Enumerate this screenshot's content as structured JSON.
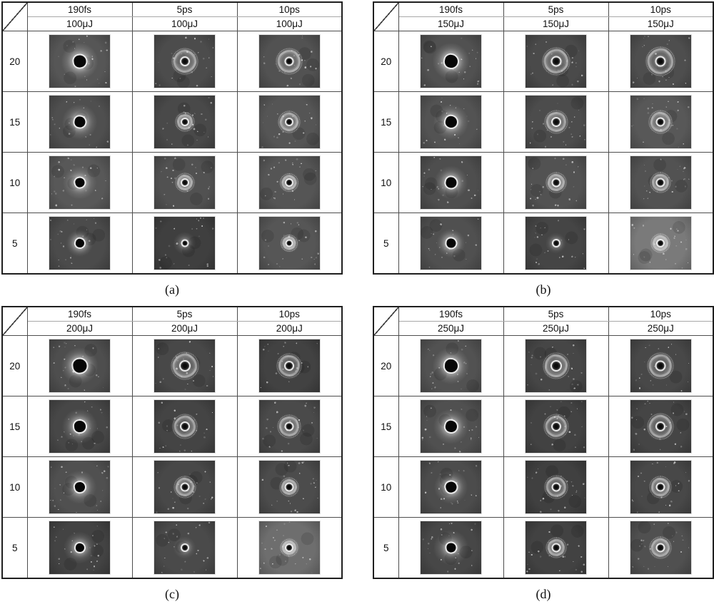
{
  "figure": {
    "panels": [
      {
        "caption": "(a)",
        "energy": "100μJ",
        "durations": [
          "190fs",
          "5ps",
          "10ps"
        ],
        "row_labels": [
          "20",
          "15",
          "10",
          "5"
        ],
        "cells": [
          [
            {
              "hole": 17,
              "ring": 0,
              "halo": 0.42,
              "halo_r": 46,
              "bg": "#565656"
            },
            {
              "hole": 10,
              "ring": 26,
              "halo": 0.18,
              "halo_r": 32,
              "bg": "#4c4c4c"
            },
            {
              "hole": 9,
              "ring": 26,
              "halo": 0.15,
              "halo_r": 30,
              "bg": "#525252"
            }
          ],
          [
            {
              "hole": 15,
              "ring": 0,
              "halo": 0.36,
              "halo_r": 44,
              "bg": "#4f4f4f"
            },
            {
              "hole": 8,
              "ring": 16,
              "halo": 0.15,
              "halo_r": 26,
              "bg": "#494949"
            },
            {
              "hole": 8,
              "ring": 20,
              "halo": 0.15,
              "halo_r": 26,
              "bg": "#555555"
            }
          ],
          [
            {
              "hole": 13,
              "ring": 0,
              "halo": 0.33,
              "halo_r": 42,
              "bg": "#585858"
            },
            {
              "hole": 8,
              "ring": 16,
              "halo": 0.15,
              "halo_r": 24,
              "bg": "#515151"
            },
            {
              "hole": 8,
              "ring": 15,
              "halo": 0.14,
              "halo_r": 22,
              "bg": "#555555"
            }
          ],
          [
            {
              "hole": 12,
              "ring": 0,
              "halo": 0.28,
              "halo_r": 34,
              "bg": "#4b4b4b"
            },
            {
              "hole": 7,
              "ring": 0,
              "halo": 0.24,
              "halo_r": 28,
              "bg": "#3f3f3f"
            },
            {
              "hole": 7,
              "ring": 13,
              "halo": 0.22,
              "halo_r": 24,
              "bg": "#565656"
            }
          ]
        ]
      },
      {
        "caption": "(b)",
        "energy": "150μJ",
        "durations": [
          "190fs",
          "5ps",
          "10ps"
        ],
        "row_labels": [
          "20",
          "15",
          "10",
          "5"
        ],
        "cells": [
          [
            {
              "hole": 18,
              "ring": 0,
              "halo": 0.42,
              "halo_r": 46,
              "bg": "#515151"
            },
            {
              "hole": 11,
              "ring": 28,
              "halo": 0.18,
              "halo_r": 32,
              "bg": "#4a4a4a"
            },
            {
              "hole": 11,
              "ring": 30,
              "halo": 0.16,
              "halo_r": 32,
              "bg": "#4e4e4e"
            }
          ],
          [
            {
              "hole": 16,
              "ring": 0,
              "halo": 0.38,
              "halo_r": 44,
              "bg": "#535353"
            },
            {
              "hole": 10,
              "ring": 22,
              "halo": 0.16,
              "halo_r": 28,
              "bg": "#4c4c4c"
            },
            {
              "hole": 9,
              "ring": 22,
              "halo": 0.15,
              "halo_r": 28,
              "bg": "#585858"
            }
          ],
          [
            {
              "hole": 15,
              "ring": 0,
              "halo": 0.34,
              "halo_r": 42,
              "bg": "#4e4e4e"
            },
            {
              "hole": 9,
              "ring": 18,
              "halo": 0.15,
              "halo_r": 26,
              "bg": "#525252"
            },
            {
              "hole": 9,
              "ring": 18,
              "halo": 0.14,
              "halo_r": 24,
              "bg": "#525252"
            }
          ],
          [
            {
              "hole": 13,
              "ring": 0,
              "halo": 0.3,
              "halo_r": 36,
              "bg": "#505050"
            },
            {
              "hole": 8,
              "ring": 0,
              "halo": 0.2,
              "halo_r": 26,
              "bg": "#454545"
            },
            {
              "hole": 8,
              "ring": 16,
              "halo": 0.24,
              "halo_r": 26,
              "bg": "#7a7a7a"
            }
          ]
        ]
      },
      {
        "caption": "(c)",
        "energy": "200μJ",
        "durations": [
          "190fs",
          "5ps",
          "10ps"
        ],
        "row_labels": [
          "20",
          "15",
          "10",
          "5"
        ],
        "cells": [
          [
            {
              "hole": 19,
              "ring": 0,
              "halo": 0.4,
              "halo_r": 46,
              "bg": "#4e4e4e"
            },
            {
              "hole": 12,
              "ring": 28,
              "halo": 0.18,
              "halo_r": 32,
              "bg": "#484848"
            },
            {
              "hole": 10,
              "ring": 24,
              "halo": 0.16,
              "halo_r": 28,
              "bg": "#424242"
            }
          ],
          [
            {
              "hole": 16,
              "ring": 0,
              "halo": 0.36,
              "halo_r": 44,
              "bg": "#474747"
            },
            {
              "hole": 10,
              "ring": 24,
              "halo": 0.16,
              "halo_r": 30,
              "bg": "#444444"
            },
            {
              "hole": 9,
              "ring": 22,
              "halo": 0.15,
              "halo_r": 28,
              "bg": "#4a4a4a"
            }
          ],
          [
            {
              "hole": 14,
              "ring": 0,
              "halo": 0.34,
              "halo_r": 42,
              "bg": "#505050"
            },
            {
              "hole": 9,
              "ring": 20,
              "halo": 0.15,
              "halo_r": 26,
              "bg": "#484848"
            },
            {
              "hole": 9,
              "ring": 16,
              "halo": 0.14,
              "halo_r": 24,
              "bg": "#4c4c4c"
            }
          ],
          [
            {
              "hole": 12,
              "ring": 0,
              "halo": 0.3,
              "halo_r": 40,
              "bg": "#434343"
            },
            {
              "hole": 8,
              "ring": 0,
              "halo": 0.22,
              "halo_r": 28,
              "bg": "#4a4a4a"
            },
            {
              "hole": 8,
              "ring": 14,
              "halo": 0.22,
              "halo_r": 26,
              "bg": "#6e6e6e"
            }
          ]
        ]
      },
      {
        "caption": "(d)",
        "energy": "250μJ",
        "durations": [
          "190fs",
          "5ps",
          "10ps"
        ],
        "row_labels": [
          "20",
          "15",
          "10",
          "5"
        ],
        "cells": [
          [
            {
              "hole": 18,
              "ring": 0,
              "halo": 0.4,
              "halo_r": 46,
              "bg": "#525252"
            },
            {
              "hole": 12,
              "ring": 26,
              "halo": 0.18,
              "halo_r": 30,
              "bg": "#464646"
            },
            {
              "hole": 11,
              "ring": 26,
              "halo": 0.16,
              "halo_r": 28,
              "bg": "#484848"
            }
          ],
          [
            {
              "hole": 16,
              "ring": 0,
              "halo": 0.36,
              "halo_r": 44,
              "bg": "#505050"
            },
            {
              "hole": 10,
              "ring": 24,
              "halo": 0.16,
              "halo_r": 28,
              "bg": "#424242"
            },
            {
              "hole": 10,
              "ring": 26,
              "halo": 0.15,
              "halo_r": 28,
              "bg": "#454545"
            }
          ],
          [
            {
              "hole": 15,
              "ring": 0,
              "halo": 0.34,
              "halo_r": 42,
              "bg": "#4c4c4c"
            },
            {
              "hole": 9,
              "ring": 22,
              "halo": 0.15,
              "halo_r": 26,
              "bg": "#404040"
            },
            {
              "hole": 9,
              "ring": 20,
              "halo": 0.14,
              "halo_r": 26,
              "bg": "#484848"
            }
          ],
          [
            {
              "hole": 13,
              "ring": 0,
              "halo": 0.32,
              "halo_r": 44,
              "bg": "#474747"
            },
            {
              "hole": 9,
              "ring": 18,
              "halo": 0.16,
              "halo_r": 26,
              "bg": "#424242"
            },
            {
              "hole": 9,
              "ring": 20,
              "halo": 0.18,
              "halo_r": 26,
              "bg": "#505050"
            }
          ]
        ]
      }
    ]
  }
}
